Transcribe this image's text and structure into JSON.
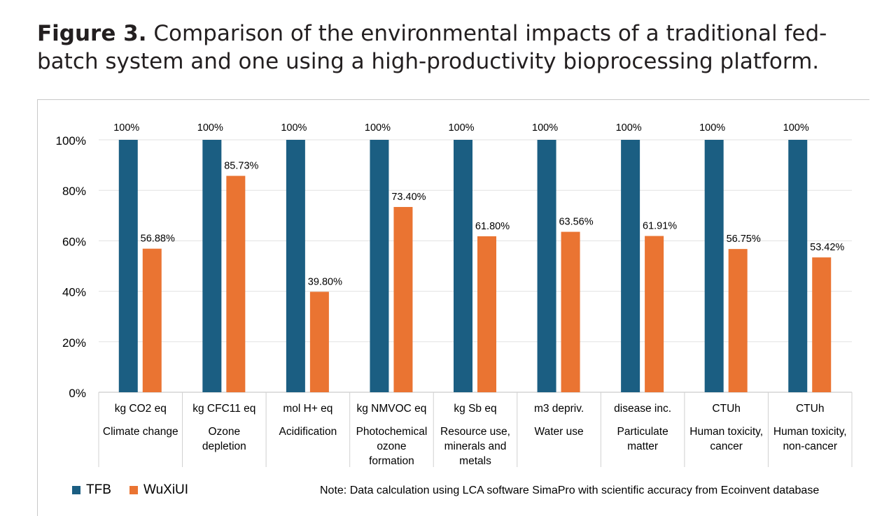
{
  "caption": {
    "bold": "Figure 3.",
    "text": "Comparison of the environmental impacts of a traditional fed-batch system and one using a high-productivity bioprocessing platform."
  },
  "note": "Note: Data calculation using LCA software SimaPro with scientific accuracy from Ecoinvent database",
  "colors": {
    "TFB": "#1b5e82",
    "WuXiUI": "#ea7432"
  },
  "chart_data": {
    "type": "bar",
    "categories": [
      {
        "unit": "kg CO2 eq",
        "name": [
          "Climate change"
        ]
      },
      {
        "unit": "kg CFC11 eq",
        "name": [
          "Ozone",
          "depletion"
        ]
      },
      {
        "unit": "mol H+ eq",
        "name": [
          "Acidification"
        ]
      },
      {
        "unit": "kg NMVOC eq",
        "name": [
          "Photochemical",
          "ozone",
          "formation"
        ]
      },
      {
        "unit": "kg Sb eq",
        "name": [
          "Resource use,",
          "minerals and",
          "metals"
        ]
      },
      {
        "unit": "m3 depriv.",
        "name": [
          "Water use"
        ]
      },
      {
        "unit": "disease inc.",
        "name": [
          "Particulate",
          "matter"
        ]
      },
      {
        "unit": "CTUh",
        "name": [
          "Human toxicity,",
          "cancer"
        ]
      },
      {
        "unit": "CTUh",
        "name": [
          "Human toxicity,",
          "non-cancer"
        ]
      }
    ],
    "series": [
      {
        "name": "TFB",
        "values": [
          100,
          100,
          100,
          100,
          100,
          100,
          100,
          100,
          100
        ],
        "labels": [
          "100%",
          "100%",
          "100%",
          "100%",
          "100%",
          "100%",
          "100%",
          "100%",
          "100%"
        ]
      },
      {
        "name": "WuXiUI",
        "values": [
          56.88,
          85.73,
          39.8,
          73.4,
          61.8,
          63.56,
          61.91,
          56.75,
          53.42
        ],
        "labels": [
          "56.88%",
          "85.73%",
          "39.80%",
          "73.40%",
          "61.80%",
          "63.56%",
          "61.91%",
          "56.75%",
          "53.42%"
        ]
      }
    ],
    "y_ticks": [
      "0%",
      "20%",
      "40%",
      "60%",
      "80%",
      "100%"
    ],
    "ylim": [
      0,
      100
    ],
    "grid": true,
    "legend_position": "bottom-left"
  }
}
